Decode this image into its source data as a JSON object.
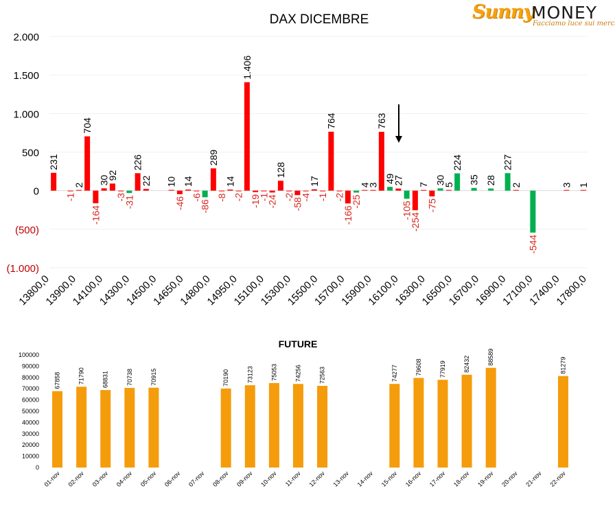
{
  "brand": {
    "logo_word1": "Sunny",
    "logo_word2": "MONEY",
    "tagline": "Facciamo luce sui mercati"
  },
  "colors": {
    "call": "#ff0000",
    "put": "#00b050",
    "future": "#f59c0c",
    "negative_label": "#d9261c",
    "text": "#000000"
  },
  "chart_data": [
    {
      "type": "bar",
      "title": "DAX DICEMBRE",
      "xlabel": "",
      "ylabel": "",
      "ylim": [
        -1000,
        2000
      ],
      "yticks": [
        2000,
        1500,
        1000,
        500,
        0,
        -500,
        -1000
      ],
      "ytick_labels": [
        "2.000",
        "1.500",
        "1.000",
        "500",
        "0",
        "(500)",
        "(1.000)"
      ],
      "grid": true,
      "legend": "none",
      "x_tick_labels": [
        "13800,0",
        "13900,0",
        "14100,0",
        "14300,0",
        "14500,0",
        "14650,0",
        "14800,0",
        "14950,0",
        "15100,0",
        "15300,0",
        "15500,0",
        "15700,0",
        "15900,0",
        "16100,0",
        "16300,0",
        "16500,0",
        "16700,0",
        "16900,0",
        "17100,0",
        "17400,0",
        "17800,0"
      ],
      "marker": "down-arrow",
      "bars": [
        {
          "value": 231,
          "label": "231",
          "series": "red"
        },
        {
          "value": 0,
          "label": "",
          "series": "red"
        },
        {
          "value": -1,
          "label": "-1",
          "series": "red"
        },
        {
          "value": 2,
          "label": "2",
          "series": "red"
        },
        {
          "value": 704,
          "label": "704",
          "series": "red"
        },
        {
          "value": -164,
          "label": "-164",
          "series": "red"
        },
        {
          "value": 30,
          "label": "30",
          "series": "red"
        },
        {
          "value": 92,
          "label": "92",
          "series": "red"
        },
        {
          "value": -3,
          "label": "-3",
          "series": "red"
        },
        {
          "value": -31,
          "label": "-31",
          "series": "green"
        },
        {
          "value": 226,
          "label": "226",
          "series": "red"
        },
        {
          "value": 22,
          "label": "22",
          "series": "red"
        },
        {
          "value": 0,
          "label": "",
          "series": "red"
        },
        {
          "value": 0,
          "label": "",
          "series": "red"
        },
        {
          "value": 10,
          "label": "10",
          "series": "red"
        },
        {
          "value": -46,
          "label": "-46",
          "series": "red"
        },
        {
          "value": 14,
          "label": "14",
          "series": "red"
        },
        {
          "value": -6,
          "label": "-6",
          "series": "red"
        },
        {
          "value": -86,
          "label": "-86",
          "series": "green"
        },
        {
          "value": 289,
          "label": "289",
          "series": "red"
        },
        {
          "value": -8,
          "label": "-8",
          "series": "red"
        },
        {
          "value": 14,
          "label": "14",
          "series": "red"
        },
        {
          "value": -2,
          "label": "-2",
          "series": "red"
        },
        {
          "value": 1406,
          "label": "1.406",
          "series": "red"
        },
        {
          "value": -19,
          "label": "-19",
          "series": "red"
        },
        {
          "value": -1,
          "label": "-1",
          "series": "red"
        },
        {
          "value": -24,
          "label": "-24",
          "series": "red"
        },
        {
          "value": 128,
          "label": "128",
          "series": "red"
        },
        {
          "value": -2,
          "label": "-2",
          "series": "red"
        },
        {
          "value": -58,
          "label": "-58",
          "series": "red"
        },
        {
          "value": -4,
          "label": "-4",
          "series": "red"
        },
        {
          "value": 17,
          "label": "17",
          "series": "red"
        },
        {
          "value": -1,
          "label": "-1",
          "series": "red"
        },
        {
          "value": 764,
          "label": "764",
          "series": "red"
        },
        {
          "value": -2,
          "label": "-2",
          "series": "red"
        },
        {
          "value": -166,
          "label": "-166",
          "series": "red"
        },
        {
          "value": -25,
          "label": "-25",
          "series": "green"
        },
        {
          "value": 4,
          "label": "4",
          "series": "red"
        },
        {
          "value": 3,
          "label": "3",
          "series": "red"
        },
        {
          "value": 763,
          "label": "763",
          "series": "red"
        },
        {
          "value": 49,
          "label": "49",
          "series": "green"
        },
        {
          "value": 27,
          "label": "27",
          "series": "red"
        },
        {
          "value": -105,
          "label": "-105",
          "series": "green"
        },
        {
          "value": -254,
          "label": "-254",
          "series": "red"
        },
        {
          "value": 7,
          "label": "7",
          "series": "red"
        },
        {
          "value": -75,
          "label": "-75",
          "series": "red"
        },
        {
          "value": 30,
          "label": "30",
          "series": "green"
        },
        {
          "value": 5,
          "label": "5",
          "series": "red"
        },
        {
          "value": 224,
          "label": "224",
          "series": "green"
        },
        {
          "value": 0,
          "label": "",
          "series": "red"
        },
        {
          "value": 35,
          "label": "35",
          "series": "green"
        },
        {
          "value": 0,
          "label": "",
          "series": "red"
        },
        {
          "value": 28,
          "label": "28",
          "series": "green"
        },
        {
          "value": 0,
          "label": "",
          "series": "red"
        },
        {
          "value": 227,
          "label": "227",
          "series": "green"
        },
        {
          "value": 2,
          "label": "2",
          "series": "red"
        },
        {
          "value": 0,
          "label": "",
          "series": "red"
        },
        {
          "value": -544,
          "label": "-544",
          "series": "green"
        },
        {
          "value": 0,
          "label": "",
          "series": "red"
        },
        {
          "value": 0,
          "label": "",
          "series": "red"
        },
        {
          "value": 0,
          "label": "",
          "series": "red"
        },
        {
          "value": 3,
          "label": "3",
          "series": "red"
        },
        {
          "value": 0,
          "label": "",
          "series": "red"
        },
        {
          "value": 1,
          "label": "1",
          "series": "red"
        }
      ]
    },
    {
      "type": "bar",
      "title": "FUTURE",
      "xlabel": "",
      "ylabel": "",
      "ylim": [
        0,
        100000
      ],
      "yticks": [
        100000,
        90000,
        80000,
        70000,
        60000,
        50000,
        40000,
        30000,
        20000,
        10000,
        0
      ],
      "grid": false,
      "legend": "none",
      "categories": [
        "01-nov",
        "02-nov",
        "03-nov",
        "04-nov",
        "05-nov",
        "06-nov",
        "07-nov",
        "08-nov",
        "09-nov",
        "10-nov",
        "11-nov",
        "12-nov",
        "13-nov",
        "14-nov",
        "15-nov",
        "16-nov",
        "17-nov",
        "18-nov",
        "19-nov",
        "20-nov",
        "21-nov",
        "22-nov"
      ],
      "values": [
        67858,
        71790,
        68831,
        70738,
        70915,
        null,
        null,
        70190,
        73123,
        75053,
        74256,
        72563,
        null,
        null,
        74277,
        79608,
        77919,
        82432,
        88589,
        null,
        null,
        81279
      ],
      "value_labels": [
        "67858",
        "71790",
        "68831",
        "70738",
        "70915",
        "",
        "",
        "70190",
        "73123",
        "75053",
        "74256",
        "72563",
        "",
        "",
        "74277",
        "79608",
        "77919",
        "82432",
        "88589",
        "",
        "",
        "81279"
      ]
    }
  ]
}
